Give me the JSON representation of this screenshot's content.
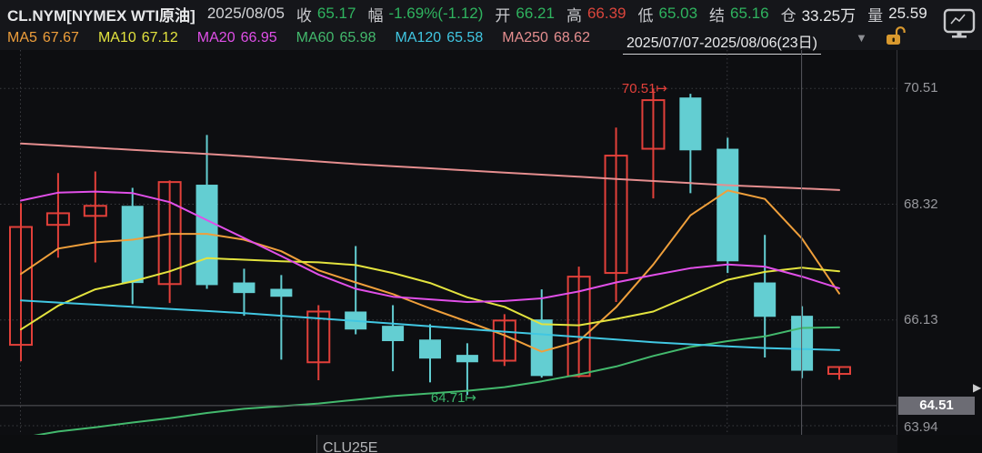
{
  "header": {
    "symbol": "CL.NYM[NYMEX WTI原油]",
    "date": "2025/08/05",
    "fields": [
      {
        "label": "收",
        "value": "65.17",
        "tone": "down"
      },
      {
        "label": "幅",
        "value": "-1.69%(-1.12)",
        "tone": "down"
      },
      {
        "label": "开",
        "value": "66.21",
        "tone": "down"
      },
      {
        "label": "高",
        "value": "66.39",
        "tone": "up"
      },
      {
        "label": "低",
        "value": "65.03",
        "tone": "down"
      },
      {
        "label": "结",
        "value": "65.16",
        "tone": "down"
      },
      {
        "label": "仓",
        "value": "33.25万",
        "tone": "neutral"
      },
      {
        "label": "量",
        "value": "25.59",
        "tone": "neutral"
      }
    ]
  },
  "ma_bar": {
    "items": [
      {
        "label": "MA5",
        "value": "67.67",
        "color": "#ef9f3b"
      },
      {
        "label": "MA10",
        "value": "67.12",
        "color": "#e3e33e"
      },
      {
        "label": "MA20",
        "value": "66.95",
        "color": "#e04fe8"
      },
      {
        "label": "MA60",
        "value": "65.98",
        "color": "#43b96d"
      },
      {
        "label": "MA120",
        "value": "65.58",
        "color": "#41c7e2"
      },
      {
        "label": "MA250",
        "value": "68.62",
        "color": "#e58e8f"
      }
    ],
    "range_label": "2025/07/07-2025/08/06(23日)"
  },
  "y_axis": {
    "ticks": [
      "70.51",
      "68.32",
      "66.13",
      "63.94"
    ],
    "crosshair_price": "64.51"
  },
  "markers": {
    "period_high": "70.51",
    "period_low": "64.71",
    "arrow": "↦"
  },
  "x_axis": {
    "contract_label": "CLU25E"
  },
  "icons": [
    "monitor-icon",
    "lock-open-icon",
    "dropdown-arrow-icon",
    "expand-right-icon"
  ],
  "colors": {
    "up_candle": "#e2403a",
    "down_candle": "#63ced2",
    "value_up": "#d9453c",
    "value_down": "#2fb35f",
    "grid": "#3b3c41",
    "crosshair": "#57585e",
    "axis_text": "#97989d",
    "crosshair_label_bg": "#6c6c74"
  },
  "chart_data": {
    "type": "candlestick",
    "x_range": "2025/07/07-2025/08/06",
    "candle_count": 23,
    "ylim": [
      63.94,
      70.9
    ],
    "y_ticks": [
      70.51,
      68.32,
      66.13,
      63.94
    ],
    "period_high": 70.51,
    "period_low": 64.71,
    "grid_vlines_at_index": [
      0,
      19
    ],
    "crosshair": {
      "price": 64.51,
      "candle_index": 21
    },
    "candles_ohlc": [
      [
        65.66,
        68.34,
        65.35,
        67.89
      ],
      [
        67.93,
        68.91,
        67.31,
        68.15
      ],
      [
        68.1,
        68.94,
        67.22,
        68.29
      ],
      [
        68.29,
        68.63,
        66.43,
        66.83
      ],
      [
        66.81,
        68.77,
        66.45,
        68.74
      ],
      [
        68.69,
        69.63,
        66.72,
        66.79
      ],
      [
        66.84,
        67.1,
        66.21,
        66.64
      ],
      [
        66.72,
        66.98,
        65.38,
        66.57
      ],
      [
        65.33,
        66.41,
        64.99,
        66.29
      ],
      [
        66.29,
        67.53,
        65.86,
        65.95
      ],
      [
        66.02,
        66.41,
        65.16,
        65.73
      ],
      [
        65.76,
        66.05,
        64.95,
        65.4
      ],
      [
        65.47,
        65.69,
        64.71,
        65.33
      ],
      [
        65.36,
        66.24,
        65.26,
        66.12
      ],
      [
        66.14,
        66.71,
        65.04,
        65.07
      ],
      [
        65.07,
        67.14,
        65.04,
        66.95
      ],
      [
        67.02,
        69.77,
        66.47,
        69.24
      ],
      [
        69.37,
        70.51,
        68.43,
        70.29
      ],
      [
        70.34,
        70.41,
        68.53,
        69.34
      ],
      [
        69.37,
        69.58,
        67.02,
        67.24
      ],
      [
        66.84,
        67.74,
        65.42,
        66.19
      ],
      [
        66.21,
        66.39,
        65.03,
        65.17
      ],
      [
        65.11,
        65.24,
        65.0,
        65.24
      ]
    ],
    "ma_series": [
      {
        "name": "MA5",
        "color": "#ef9f3b",
        "values": [
          67.0,
          67.48,
          67.6,
          67.65,
          67.76,
          67.76,
          67.65,
          67.43,
          67.07,
          66.84,
          66.62,
          66.35,
          66.1,
          65.84,
          65.53,
          65.73,
          66.37,
          67.18,
          68.11,
          68.58,
          68.42,
          67.67,
          66.63
        ]
      },
      {
        "name": "MA10",
        "color": "#e3e33e",
        "values": [
          65.95,
          66.4,
          66.71,
          66.86,
          67.05,
          67.3,
          67.27,
          67.24,
          67.22,
          67.17,
          67.02,
          66.83,
          66.56,
          66.38,
          66.05,
          66.03,
          66.15,
          66.29,
          66.59,
          66.89,
          67.04,
          67.12,
          67.05
        ]
      },
      {
        "name": "MA20",
        "color": "#e04fe8",
        "values": [
          68.39,
          68.54,
          68.56,
          68.53,
          68.36,
          68.02,
          67.68,
          67.34,
          66.99,
          66.72,
          66.57,
          66.52,
          66.47,
          66.49,
          66.54,
          66.67,
          66.84,
          66.98,
          67.11,
          67.18,
          67.14,
          66.95,
          66.73
        ]
      },
      {
        "name": "MA60",
        "color": "#43b96d",
        "values": [
          63.9,
          64.02,
          64.1,
          64.19,
          64.27,
          64.37,
          64.45,
          64.5,
          64.55,
          64.62,
          64.69,
          64.74,
          64.79,
          64.86,
          64.97,
          65.1,
          65.25,
          65.45,
          65.62,
          65.73,
          65.82,
          65.98,
          65.99
        ]
      },
      {
        "name": "MA120",
        "color": "#41c7e2",
        "values": [
          66.5,
          66.46,
          66.42,
          66.38,
          66.34,
          66.3,
          66.26,
          66.21,
          66.16,
          66.11,
          66.06,
          66.01,
          65.96,
          65.91,
          65.86,
          65.81,
          65.76,
          65.71,
          65.67,
          65.63,
          65.6,
          65.58,
          65.56
        ]
      },
      {
        "name": "MA250",
        "color": "#e58e8f",
        "values": [
          69.47,
          69.43,
          69.39,
          69.35,
          69.31,
          69.27,
          69.23,
          69.18,
          69.13,
          69.08,
          69.04,
          69.0,
          68.96,
          68.92,
          68.88,
          68.84,
          68.8,
          68.76,
          68.72,
          68.68,
          68.65,
          68.62,
          68.59
        ]
      }
    ]
  }
}
